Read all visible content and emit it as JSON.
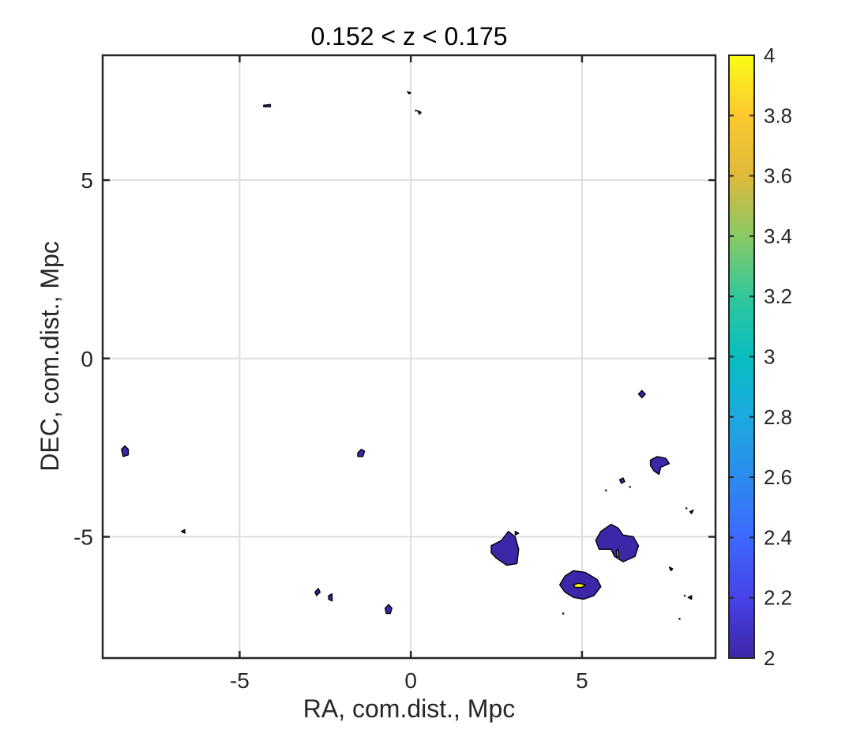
{
  "chart_data": {
    "type": "contour",
    "title": "0.152 < z < 0.175",
    "xlabel": "RA, com.dist., Mpc",
    "ylabel": "DEC, com.dist., Mpc",
    "xlim": [
      -9,
      8.9
    ],
    "ylim": [
      -8.4,
      8.5
    ],
    "xticks": [
      -5,
      0,
      5
    ],
    "xtick_labels": [
      "-5",
      "0",
      "5"
    ],
    "yticks": [
      -5,
      0,
      5
    ],
    "ytick_labels": [
      "-5",
      "0",
      "5"
    ],
    "grid": true,
    "colorbar": {
      "range": [
        2,
        4
      ],
      "ticks": [
        2,
        2.2,
        2.4,
        2.6,
        2.8,
        3,
        3.2,
        3.4,
        3.6,
        3.8,
        4
      ],
      "tick_labels": [
        "2",
        "2.2",
        "2.4",
        "2.6",
        "2.8",
        "3",
        "3.2",
        "3.4",
        "3.6",
        "3.8",
        "4"
      ],
      "colormap": "parula",
      "colors": [
        "#3E26A8",
        "#4743E8",
        "#3E69FE",
        "#2B8CEE",
        "#1CAADF",
        "#08BDC0",
        "#31C79A",
        "#8AC965",
        "#DEB93A",
        "#FCC930",
        "#F9FB15"
      ]
    },
    "regions": [
      {
        "level": 2,
        "color": "#3E26A8",
        "points": [
          [
            2.35,
            -5.25
          ],
          [
            2.65,
            -5.1
          ],
          [
            2.85,
            -4.85
          ],
          [
            3.05,
            -5.0
          ],
          [
            3.15,
            -5.35
          ],
          [
            3.1,
            -5.75
          ],
          [
            2.8,
            -5.8
          ],
          [
            2.5,
            -5.6
          ],
          [
            2.35,
            -5.45
          ]
        ]
      },
      {
        "level": 2,
        "color": "#3E26A8",
        "points": [
          [
            4.35,
            -6.35
          ],
          [
            4.5,
            -6.1
          ],
          [
            4.75,
            -5.95
          ],
          [
            5.1,
            -6.0
          ],
          [
            5.45,
            -6.2
          ],
          [
            5.55,
            -6.4
          ],
          [
            5.35,
            -6.65
          ],
          [
            5.05,
            -6.75
          ],
          [
            4.75,
            -6.7
          ],
          [
            4.5,
            -6.55
          ]
        ]
      },
      {
        "level": 2,
        "color": "#3E26A8",
        "points": [
          [
            5.4,
            -5.1
          ],
          [
            5.55,
            -4.85
          ],
          [
            5.85,
            -4.65
          ],
          [
            6.05,
            -4.75
          ],
          [
            6.2,
            -4.95
          ],
          [
            6.5,
            -5.0
          ],
          [
            6.65,
            -5.25
          ],
          [
            6.55,
            -5.55
          ],
          [
            6.2,
            -5.7
          ],
          [
            5.95,
            -5.55
          ],
          [
            5.85,
            -5.35
          ],
          [
            5.5,
            -5.35
          ]
        ]
      },
      {
        "level": 2,
        "color": "#3E26A8",
        "points": [
          [
            7.0,
            -2.85
          ],
          [
            7.2,
            -2.75
          ],
          [
            7.45,
            -2.8
          ],
          [
            7.55,
            -2.95
          ],
          [
            7.3,
            -3.05
          ],
          [
            7.25,
            -3.25
          ],
          [
            7.1,
            -3.15
          ],
          [
            7.0,
            -3.0
          ]
        ]
      },
      {
        "level": 2,
        "color": "#3E26A8",
        "points": [
          [
            6.65,
            -1.0
          ],
          [
            6.75,
            -0.9
          ],
          [
            6.85,
            -1.0
          ],
          [
            6.75,
            -1.1
          ]
        ]
      },
      {
        "level": 2,
        "color": "#3E26A8",
        "points": [
          [
            -8.45,
            -2.55
          ],
          [
            -8.35,
            -2.45
          ],
          [
            -8.25,
            -2.55
          ],
          [
            -8.25,
            -2.7
          ],
          [
            -8.4,
            -2.75
          ]
        ]
      },
      {
        "level": 2,
        "color": "#3E26A8",
        "points": [
          [
            -1.55,
            -2.65
          ],
          [
            -1.45,
            -2.55
          ],
          [
            -1.35,
            -2.6
          ],
          [
            -1.4,
            -2.75
          ],
          [
            -1.55,
            -2.75
          ]
        ]
      },
      {
        "level": 2,
        "color": "#3E26A8",
        "points": [
          [
            -2.8,
            -6.55
          ],
          [
            -2.7,
            -6.45
          ],
          [
            -2.65,
            -6.55
          ],
          [
            -2.75,
            -6.65
          ]
        ]
      },
      {
        "level": 2,
        "color": "#3E26A8",
        "points": [
          [
            -2.4,
            -6.65
          ],
          [
            -2.3,
            -6.6
          ],
          [
            -2.3,
            -6.8
          ],
          [
            -2.4,
            -6.75
          ]
        ]
      },
      {
        "level": 2,
        "color": "#3E26A8",
        "points": [
          [
            -0.75,
            -7.0
          ],
          [
            -0.65,
            -6.9
          ],
          [
            -0.55,
            -7.0
          ],
          [
            -0.6,
            -7.15
          ],
          [
            -0.72,
            -7.15
          ]
        ]
      },
      {
        "level": 2,
        "color": "#3E26A8",
        "points": [
          [
            -4.3,
            7.1
          ],
          [
            -4.1,
            7.12
          ],
          [
            -4.1,
            7.06
          ],
          [
            -4.3,
            7.06
          ]
        ]
      },
      {
        "level": 2,
        "color": "#3E26A8",
        "points": [
          [
            0.2,
            6.95
          ],
          [
            0.3,
            6.9
          ],
          [
            0.25,
            6.85
          ]
        ]
      },
      {
        "level": 2,
        "color": "#3E26A8",
        "points": [
          [
            -0.1,
            7.48
          ],
          [
            0.0,
            7.45
          ],
          [
            -0.05,
            7.42
          ]
        ]
      },
      {
        "level": 2,
        "color": "#3E26A8",
        "points": [
          [
            -6.7,
            -4.85
          ],
          [
            -6.6,
            -4.8
          ],
          [
            -6.6,
            -4.9
          ]
        ]
      },
      {
        "level": 2,
        "color": "#3E26A8",
        "points": [
          [
            3.05,
            -4.85
          ],
          [
            3.15,
            -4.9
          ],
          [
            3.05,
            -4.95
          ]
        ]
      },
      {
        "level": 2,
        "color": "#3E26A8",
        "points": [
          [
            6.1,
            -3.4
          ],
          [
            6.2,
            -3.35
          ],
          [
            6.25,
            -3.45
          ],
          [
            6.15,
            -3.5
          ]
        ]
      },
      {
        "level": 2,
        "color": "#3E26A8",
        "points": [
          [
            7.55,
            -5.85
          ],
          [
            7.65,
            -5.9
          ],
          [
            7.6,
            -5.95
          ]
        ]
      },
      {
        "level": 2,
        "color": "#3E26A8",
        "points": [
          [
            8.15,
            -4.3
          ],
          [
            8.25,
            -4.25
          ],
          [
            8.2,
            -4.35
          ]
        ]
      },
      {
        "level": 2,
        "color": "#3E26A8",
        "points": [
          [
            8.1,
            -6.7
          ],
          [
            8.2,
            -6.65
          ],
          [
            8.2,
            -6.75
          ]
        ]
      },
      {
        "level": 4,
        "color": "#F9FB15",
        "points": [
          [
            4.75,
            -6.35
          ],
          [
            4.9,
            -6.3
          ],
          [
            5.1,
            -6.35
          ],
          [
            5.0,
            -6.42
          ],
          [
            4.8,
            -6.42
          ]
        ]
      },
      {
        "level": 4,
        "color": "#F9FB15",
        "points": [
          [
            6.0,
            -5.4
          ],
          [
            6.05,
            -5.35
          ],
          [
            6.08,
            -5.55
          ],
          [
            6.02,
            -5.55
          ]
        ]
      }
    ],
    "specks": [
      [
        4.45,
        -7.15
      ],
      [
        5.7,
        -3.7
      ],
      [
        6.4,
        -3.6
      ],
      [
        8.05,
        -4.2
      ],
      [
        7.85,
        -7.3
      ],
      [
        8.0,
        -6.65
      ],
      [
        0.15,
        6.95
      ]
    ]
  }
}
